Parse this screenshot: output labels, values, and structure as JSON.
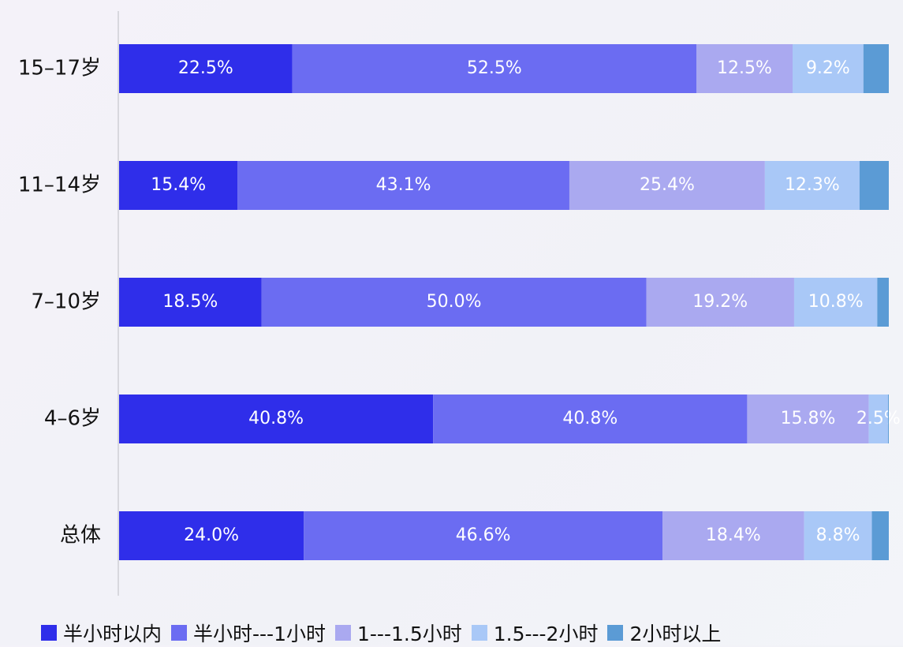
{
  "chart_data": {
    "type": "stacked-bar-horizontal",
    "categories": [
      "15–17岁",
      "11–14岁",
      "7–10岁",
      "4–6岁",
      "总体"
    ],
    "xlim": [
      0,
      100
    ],
    "series": [
      {
        "name": "半小时以内",
        "color": "#2f2eea",
        "values": [
          22.5,
          15.4,
          18.5,
          40.8,
          24.0
        ],
        "value_labels": [
          "22.5%",
          "15.4%",
          "18.5%",
          "40.8%",
          "24.0%"
        ]
      },
      {
        "name": "半小时---1小时",
        "color": "#6b6cf2",
        "values": [
          52.5,
          43.1,
          50.0,
          40.8,
          46.6
        ],
        "value_labels": [
          "52.5%",
          "43.1%",
          "50.0%",
          "40.8%",
          "46.6%"
        ]
      },
      {
        "name": "1---1.5小时",
        "color": "#aaa9f0",
        "values": [
          12.5,
          25.4,
          19.2,
          15.8,
          18.4
        ],
        "value_labels": [
          "12.5%",
          "25.4%",
          "19.2%",
          "15.8%",
          "18.4%"
        ]
      },
      {
        "name": "1.5---2小时",
        "color": "#a9c8f7",
        "values": [
          9.2,
          12.3,
          10.8,
          2.5,
          8.8
        ],
        "value_labels": [
          "9.2%",
          "12.3%",
          "10.8%",
          "2.5%",
          "8.8%"
        ]
      },
      {
        "name": "2小时以上",
        "color": "#5b9bd5",
        "values": [
          3.3,
          3.8,
          1.5,
          0.1,
          2.2
        ]
      }
    ]
  }
}
